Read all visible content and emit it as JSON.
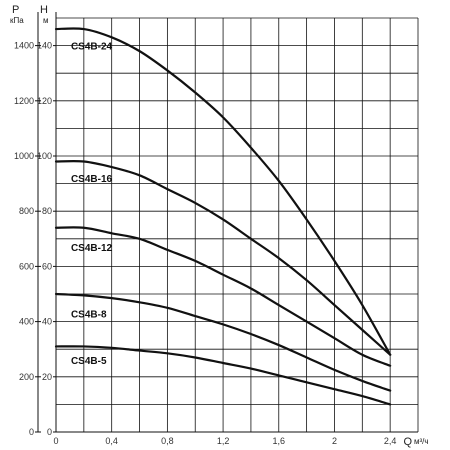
{
  "chart_data": {
    "type": "line",
    "title": "",
    "x_axis": {
      "label": "Q",
      "unit": "м³/ч",
      "range": [
        0,
        2.6
      ],
      "ticks": [
        0,
        0.4,
        0.8,
        1.2,
        1.6,
        2,
        2.4
      ],
      "tick_labels": [
        "0",
        "0,4",
        "0,8",
        "1,2",
        "1,6",
        "2",
        "2,4"
      ]
    },
    "y_axis_left": {
      "label": "P",
      "unit": "кПа",
      "range": [
        0,
        1500
      ],
      "ticks": [
        0,
        200,
        400,
        600,
        800,
        1000,
        1200,
        1400
      ],
      "tick_labels": [
        "0",
        "200",
        "400",
        "600",
        "800",
        "1000",
        "1200",
        "1400"
      ]
    },
    "y_axis_right": {
      "label": "H",
      "unit": "м",
      "range": [
        0,
        150
      ],
      "ticks": [
        0,
        20,
        40,
        60,
        80,
        100,
        120,
        140
      ],
      "tick_labels": [
        "0",
        "20",
        "40",
        "60",
        "80",
        "100",
        "120",
        "140"
      ]
    },
    "grid": true,
    "series": [
      {
        "name": "CS4B-24",
        "points": [
          [
            0,
            146
          ],
          [
            0.2,
            146
          ],
          [
            0.4,
            143
          ],
          [
            0.6,
            138
          ],
          [
            0.8,
            131
          ],
          [
            1.0,
            123
          ],
          [
            1.2,
            114
          ],
          [
            1.4,
            103
          ],
          [
            1.6,
            91
          ],
          [
            1.8,
            77
          ],
          [
            2.0,
            62
          ],
          [
            2.2,
            46
          ],
          [
            2.4,
            28
          ]
        ]
      },
      {
        "name": "CS4B-16",
        "points": [
          [
            0,
            98
          ],
          [
            0.2,
            98
          ],
          [
            0.4,
            96
          ],
          [
            0.6,
            93
          ],
          [
            0.8,
            88
          ],
          [
            1.0,
            83
          ],
          [
            1.2,
            77
          ],
          [
            1.4,
            70
          ],
          [
            1.6,
            63
          ],
          [
            1.8,
            55
          ],
          [
            2.0,
            46
          ],
          [
            2.2,
            37
          ],
          [
            2.4,
            28
          ]
        ]
      },
      {
        "name": "CS4B-12",
        "points": [
          [
            0,
            74
          ],
          [
            0.2,
            74
          ],
          [
            0.4,
            72
          ],
          [
            0.6,
            70
          ],
          [
            0.8,
            66
          ],
          [
            1.0,
            62
          ],
          [
            1.2,
            57
          ],
          [
            1.4,
            52
          ],
          [
            1.6,
            46
          ],
          [
            1.8,
            40
          ],
          [
            2.0,
            34
          ],
          [
            2.2,
            28
          ],
          [
            2.4,
            24
          ]
        ]
      },
      {
        "name": "CS4B-8",
        "points": [
          [
            0,
            50
          ],
          [
            0.2,
            49.5
          ],
          [
            0.4,
            48.5
          ],
          [
            0.6,
            47
          ],
          [
            0.8,
            45
          ],
          [
            1.0,
            42
          ],
          [
            1.2,
            39
          ],
          [
            1.4,
            35.5
          ],
          [
            1.6,
            31.5
          ],
          [
            1.8,
            27
          ],
          [
            2.0,
            22.5
          ],
          [
            2.2,
            18.5
          ],
          [
            2.4,
            15
          ]
        ]
      },
      {
        "name": "CS4B-5",
        "points": [
          [
            0,
            31
          ],
          [
            0.2,
            31
          ],
          [
            0.4,
            30.5
          ],
          [
            0.6,
            29.5
          ],
          [
            0.8,
            28.5
          ],
          [
            1.0,
            27
          ],
          [
            1.2,
            25
          ],
          [
            1.4,
            23
          ],
          [
            1.6,
            20.5
          ],
          [
            1.8,
            18
          ],
          [
            2.0,
            15.5
          ],
          [
            2.2,
            13
          ],
          [
            2.4,
            10
          ]
        ]
      }
    ],
    "label_values": [
      {
        "series": "CS4B-24",
        "x": 0.05,
        "y": 140
      },
      {
        "series": "CS4B-16",
        "x": 0.05,
        "y": 92
      },
      {
        "series": "CS4B-12",
        "x": 0.05,
        "y": 67
      },
      {
        "series": "CS4B-8",
        "x": 0.05,
        "y": 43
      },
      {
        "series": "CS4B-5",
        "x": 0.05,
        "y": 26
      }
    ]
  }
}
